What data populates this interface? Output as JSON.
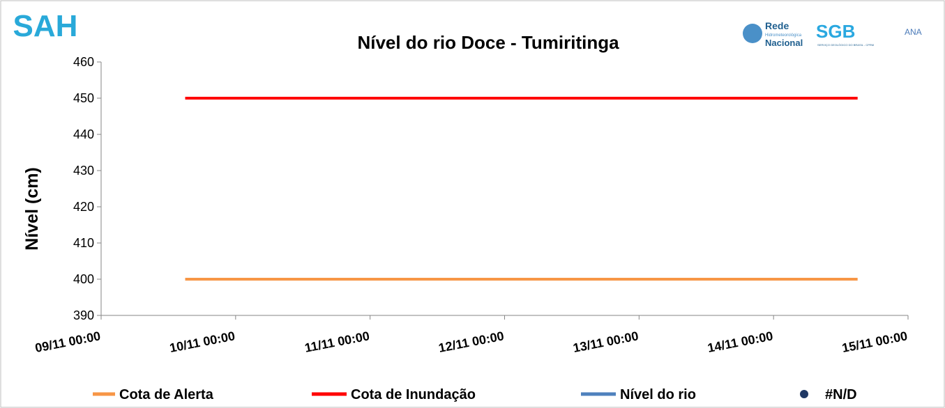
{
  "chart_data": {
    "type": "line",
    "title": "Nível do rio Doce - Tumiritinga",
    "y_label": "Nível (cm)",
    "xlim": [
      "09/11 00:00",
      "15/11 00:00"
    ],
    "xticks": [
      "09/11 00:00",
      "10/11 00:00",
      "11/11 00:00",
      "12/11 00:00",
      "13/11 00:00",
      "14/11 00:00",
      "15/11 00:00"
    ],
    "ylim": [
      390,
      460
    ],
    "yticks": [
      390,
      400,
      410,
      420,
      430,
      440,
      450,
      460
    ],
    "series": [
      {
        "name": "Cota de Alerta",
        "color": "#f79646",
        "marker": "line",
        "x": [
          "09/11 15:00",
          "14/11 15:00"
        ],
        "values": [
          400,
          400
        ]
      },
      {
        "name": "Cota de Inundação",
        "color": "#ff0000",
        "marker": "line",
        "x": [
          "09/11 15:00",
          "14/11 15:00"
        ],
        "values": [
          450,
          450
        ]
      },
      {
        "name": "Nível do rio",
        "color": "#4f81bd",
        "marker": "line",
        "x": [],
        "values": []
      },
      {
        "name": "#N/D",
        "color": "#1f3864",
        "marker": "circle",
        "x": [],
        "values": []
      }
    ],
    "logos": {
      "sah": "SAH",
      "rede": "Rede",
      "rede_sub": "Hidrometeorológica",
      "rede_name": "Nacional",
      "sgb": "SGB",
      "sgb_sub": "SERVIÇO GEOLÓGICO DO BRASIL - CPRM",
      "ana": "ANA"
    }
  }
}
